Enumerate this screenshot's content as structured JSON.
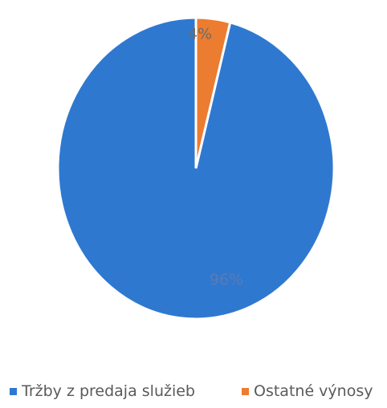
{
  "chart_data": {
    "type": "pie",
    "title": "",
    "legend_position": "bottom",
    "slices": [
      {
        "label": "Tržby z predaja služieb",
        "value": 96,
        "data_label": "96%",
        "color": "#2f78d0"
      },
      {
        "label": "Ostatné výnosy",
        "value": 4,
        "data_label": "4%",
        "color": "#ec7c30"
      }
    ]
  }
}
